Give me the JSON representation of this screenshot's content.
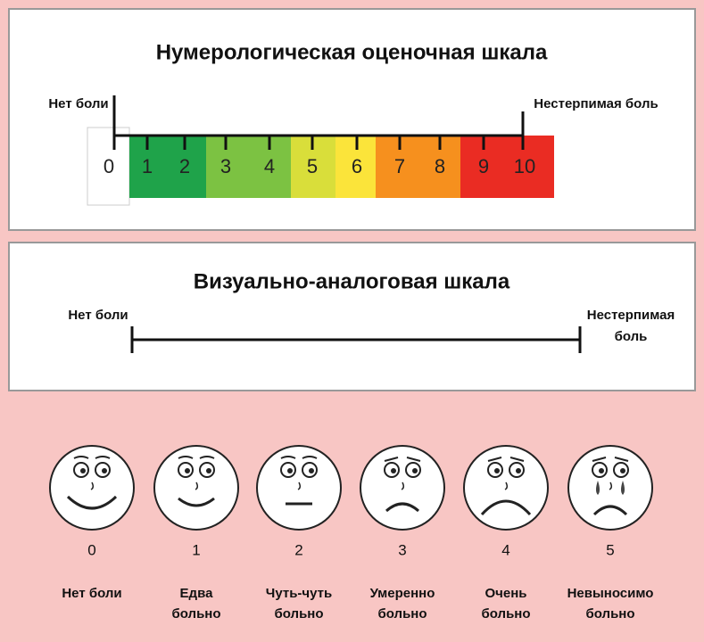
{
  "numeric_scale": {
    "title": "Нумерологическая оценочная шкала",
    "left_label": "Нет боли",
    "right_label": "Нестерпимая боль",
    "numbers": [
      "0",
      "1",
      "2",
      "3",
      "4",
      "5",
      "6",
      "7",
      "8",
      "9",
      "10"
    ]
  },
  "visual_scale": {
    "title": "Визуально-аналоговая шкала",
    "left_label": "Нет боли",
    "right_label": [
      "Нестерпимая",
      "боль"
    ]
  },
  "faces": [
    {
      "number": "0",
      "label": [
        "Нет боли"
      ]
    },
    {
      "number": "1",
      "label": [
        "Едва",
        "больно"
      ]
    },
    {
      "number": "2",
      "label": [
        "Чуть-чуть",
        "больно"
      ]
    },
    {
      "number": "3",
      "label": [
        "Умеренно",
        "больно"
      ]
    },
    {
      "number": "4",
      "label": [
        "Очень",
        "больно"
      ]
    },
    {
      "number": "5",
      "label": [
        "Невыносимо",
        "больно"
      ]
    }
  ]
}
